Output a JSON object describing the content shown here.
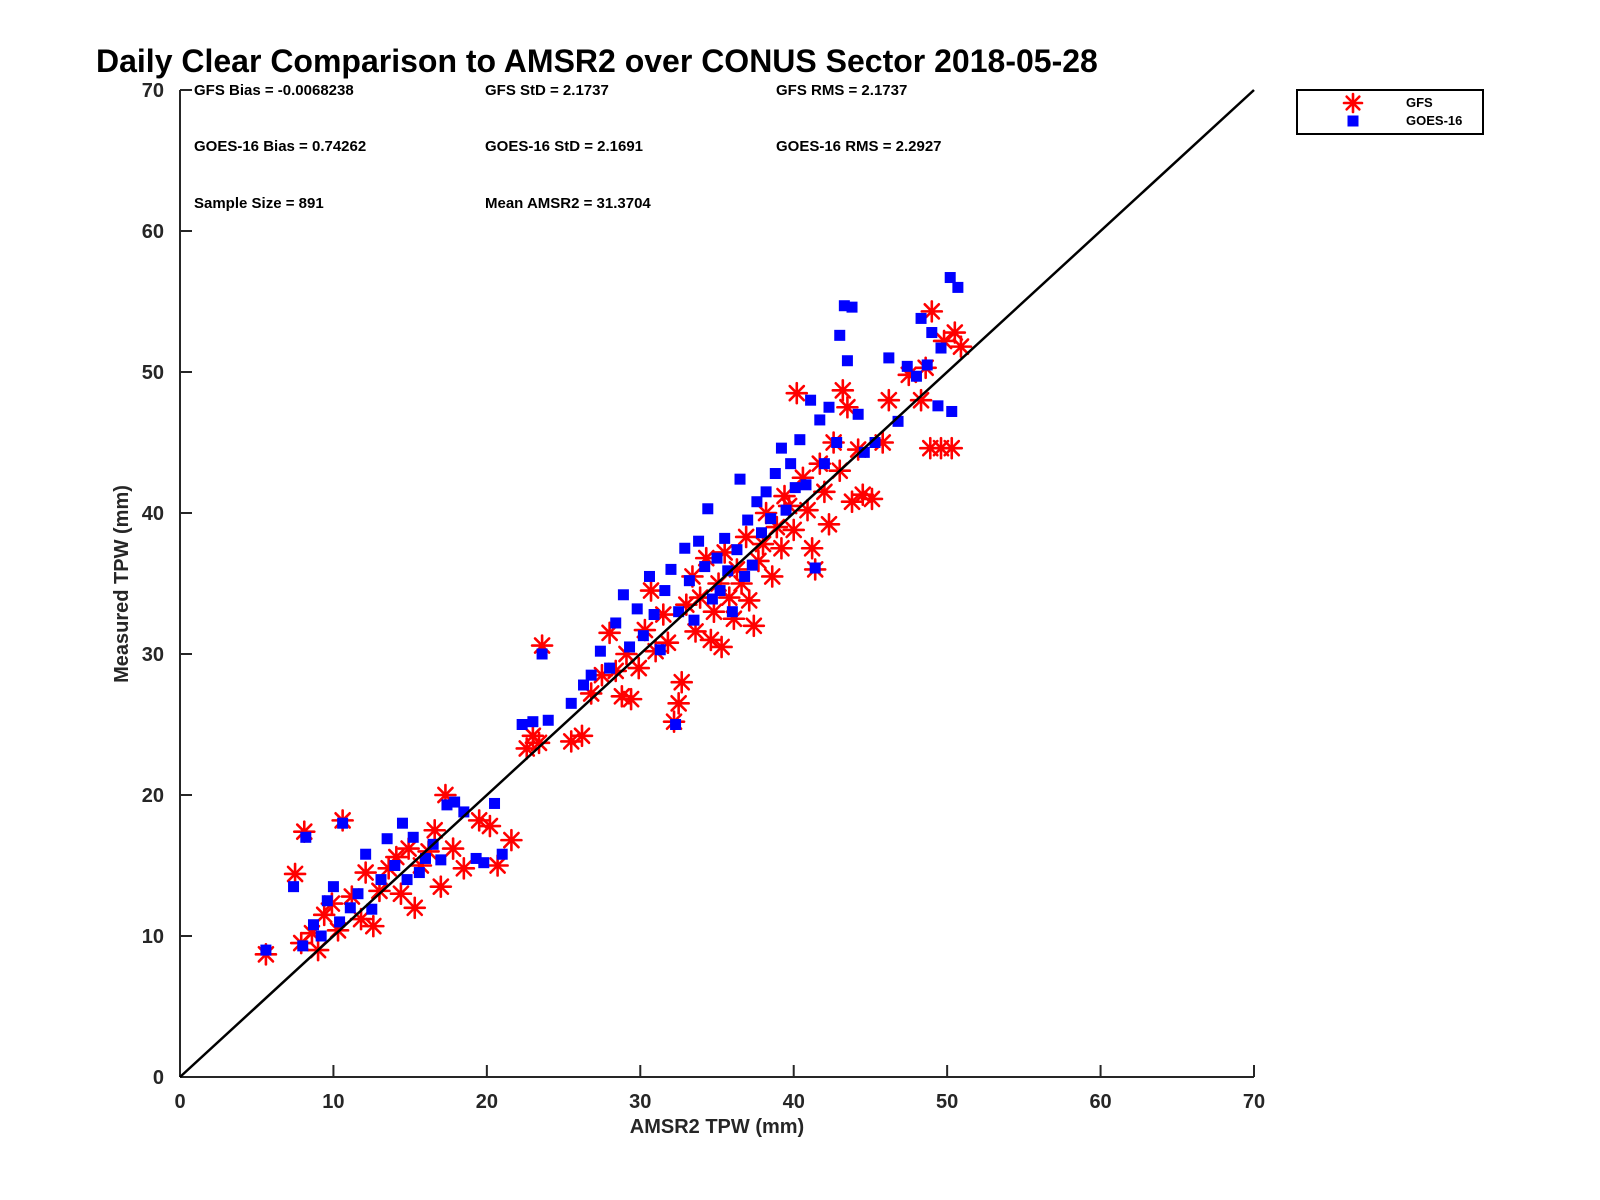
{
  "chart_data": {
    "type": "scatter",
    "title": "Daily Clear Comparison to AMSR2 over CONUS Sector 2018-05-28",
    "xlabel": "AMSR2 TPW (mm)",
    "ylabel": "Measured TPW (mm)",
    "xlim": [
      0,
      70
    ],
    "ylim": [
      0,
      70
    ],
    "xticks": [
      "0",
      "10",
      "20",
      "30",
      "40",
      "50",
      "60",
      "70"
    ],
    "yticks": [
      "0",
      "10",
      "20",
      "30",
      "40",
      "50",
      "60",
      "70"
    ],
    "grid": false,
    "legend_position": "outside-top-right",
    "reference_line": {
      "from": [
        0,
        0
      ],
      "to": [
        70,
        70
      ],
      "color": "#000000"
    },
    "stats": [
      [
        "GFS Bias = -0.0068238",
        "GFS StD = 2.1737",
        "GFS RMS = 2.1737"
      ],
      [
        "GOES-16 Bias = 0.74262",
        "GOES-16 StD = 2.1691",
        "GOES-16 RMS = 2.2927"
      ],
      [
        "Sample Size = 891",
        "Mean AMSR2 = 31.3704",
        ""
      ]
    ],
    "series": [
      {
        "name": "GFS",
        "marker": "asterisk",
        "color": "#ff0000",
        "points": [
          [
            5.6,
            8.7
          ],
          [
            7.5,
            14.4
          ],
          [
            7.9,
            9.5
          ],
          [
            8.1,
            17.4
          ],
          [
            8.6,
            10.2
          ],
          [
            9.0,
            9.0
          ],
          [
            9.4,
            11.5
          ],
          [
            9.9,
            12.3
          ],
          [
            10.3,
            10.4
          ],
          [
            10.6,
            18.2
          ],
          [
            11.2,
            12.8
          ],
          [
            11.8,
            11.2
          ],
          [
            12.1,
            14.5
          ],
          [
            12.6,
            10.7
          ],
          [
            13.0,
            13.2
          ],
          [
            13.6,
            14.8
          ],
          [
            14.1,
            15.6
          ],
          [
            14.4,
            13.0
          ],
          [
            14.9,
            16.2
          ],
          [
            15.3,
            12.0
          ],
          [
            15.7,
            15.0
          ],
          [
            16.2,
            16.0
          ],
          [
            16.6,
            17.5
          ],
          [
            17.0,
            13.5
          ],
          [
            17.3,
            20.0
          ],
          [
            17.8,
            16.2
          ],
          [
            18.5,
            14.8
          ],
          [
            19.5,
            18.2
          ],
          [
            20.2,
            17.8
          ],
          [
            20.7,
            15.0
          ],
          [
            21.6,
            16.8
          ],
          [
            22.6,
            23.3
          ],
          [
            23.0,
            24.2
          ],
          [
            23.4,
            23.7
          ],
          [
            23.6,
            30.6
          ],
          [
            25.5,
            23.8
          ],
          [
            26.2,
            24.2
          ],
          [
            26.8,
            27.2
          ],
          [
            27.5,
            28.5
          ],
          [
            28.0,
            31.5
          ],
          [
            28.4,
            28.8
          ],
          [
            28.8,
            27.0
          ],
          [
            29.1,
            30.0
          ],
          [
            29.4,
            26.8
          ],
          [
            29.9,
            29.0
          ],
          [
            30.3,
            31.7
          ],
          [
            30.7,
            34.5
          ],
          [
            31.0,
            30.2
          ],
          [
            31.5,
            32.8
          ],
          [
            31.8,
            30.8
          ],
          [
            32.2,
            25.2
          ],
          [
            32.5,
            26.5
          ],
          [
            32.7,
            28.0
          ],
          [
            33.0,
            33.5
          ],
          [
            33.4,
            35.5
          ],
          [
            33.6,
            31.6
          ],
          [
            33.9,
            34.0
          ],
          [
            34.3,
            36.8
          ],
          [
            34.6,
            31.0
          ],
          [
            34.8,
            33.0
          ],
          [
            35.1,
            35.0
          ],
          [
            35.3,
            30.5
          ],
          [
            35.5,
            37.2
          ],
          [
            35.8,
            34.0
          ],
          [
            36.1,
            32.5
          ],
          [
            36.3,
            36.0
          ],
          [
            36.6,
            35.0
          ],
          [
            36.9,
            38.3
          ],
          [
            37.1,
            33.8
          ],
          [
            37.4,
            32.0
          ],
          [
            37.7,
            36.6
          ],
          [
            38.0,
            37.8
          ],
          [
            38.2,
            40.0
          ],
          [
            38.6,
            35.5
          ],
          [
            38.9,
            39.0
          ],
          [
            39.2,
            37.5
          ],
          [
            39.4,
            41.2
          ],
          [
            39.7,
            40.5
          ],
          [
            40.0,
            38.8
          ],
          [
            40.2,
            48.5
          ],
          [
            40.6,
            42.5
          ],
          [
            40.9,
            40.2
          ],
          [
            41.2,
            37.5
          ],
          [
            41.4,
            36.0
          ],
          [
            41.7,
            43.5
          ],
          [
            42.0,
            41.5
          ],
          [
            42.3,
            39.2
          ],
          [
            42.6,
            45.0
          ],
          [
            43.0,
            43.0
          ],
          [
            43.2,
            48.7
          ],
          [
            43.5,
            47.5
          ],
          [
            43.8,
            40.8
          ],
          [
            44.2,
            44.5
          ],
          [
            44.5,
            41.3
          ],
          [
            45.1,
            41.0
          ],
          [
            45.8,
            45.0
          ],
          [
            46.2,
            48.0
          ],
          [
            47.5,
            49.8
          ],
          [
            48.3,
            48.0
          ],
          [
            48.6,
            50.3
          ],
          [
            49.0,
            54.3
          ],
          [
            48.9,
            44.6
          ],
          [
            49.6,
            44.6
          ],
          [
            50.3,
            44.6
          ],
          [
            49.8,
            52.2
          ],
          [
            50.5,
            52.8
          ],
          [
            50.9,
            51.8
          ]
        ]
      },
      {
        "name": "GOES-16",
        "marker": "square",
        "color": "#0000ff",
        "points": [
          [
            5.6,
            9.0
          ],
          [
            7.4,
            13.5
          ],
          [
            8.0,
            9.3
          ],
          [
            8.2,
            17.0
          ],
          [
            8.7,
            10.8
          ],
          [
            9.2,
            10.0
          ],
          [
            9.6,
            12.5
          ],
          [
            10.0,
            13.5
          ],
          [
            10.4,
            11.0
          ],
          [
            10.6,
            18.0
          ],
          [
            11.1,
            12.0
          ],
          [
            11.6,
            13.0
          ],
          [
            12.1,
            15.8
          ],
          [
            12.5,
            11.9
          ],
          [
            13.1,
            14.0
          ],
          [
            13.5,
            16.9
          ],
          [
            14.0,
            15.0
          ],
          [
            14.5,
            18.0
          ],
          [
            14.8,
            14.0
          ],
          [
            15.2,
            17.0
          ],
          [
            15.6,
            14.5
          ],
          [
            16.0,
            15.5
          ],
          [
            16.5,
            16.5
          ],
          [
            17.0,
            15.4
          ],
          [
            17.4,
            19.3
          ],
          [
            17.9,
            19.5
          ],
          [
            18.5,
            18.8
          ],
          [
            19.3,
            15.5
          ],
          [
            19.8,
            15.2
          ],
          [
            20.5,
            19.4
          ],
          [
            21.0,
            15.8
          ],
          [
            22.3,
            25.0
          ],
          [
            23.0,
            25.2
          ],
          [
            23.6,
            30.0
          ],
          [
            24.0,
            25.3
          ],
          [
            25.5,
            26.5
          ],
          [
            26.3,
            27.8
          ],
          [
            26.8,
            28.5
          ],
          [
            27.4,
            30.2
          ],
          [
            28.0,
            29.0
          ],
          [
            28.4,
            32.2
          ],
          [
            28.9,
            34.2
          ],
          [
            29.3,
            30.5
          ],
          [
            29.8,
            33.2
          ],
          [
            30.2,
            31.3
          ],
          [
            30.6,
            35.5
          ],
          [
            30.9,
            32.8
          ],
          [
            31.3,
            30.3
          ],
          [
            31.6,
            34.5
          ],
          [
            32.0,
            36.0
          ],
          [
            32.3,
            25.0
          ],
          [
            32.5,
            33.0
          ],
          [
            32.9,
            37.5
          ],
          [
            33.2,
            35.2
          ],
          [
            33.5,
            32.4
          ],
          [
            33.8,
            38.0
          ],
          [
            34.2,
            36.2
          ],
          [
            34.4,
            40.3
          ],
          [
            34.7,
            33.9
          ],
          [
            35.0,
            36.8
          ],
          [
            35.2,
            34.5
          ],
          [
            35.5,
            38.2
          ],
          [
            35.7,
            35.9
          ],
          [
            36.0,
            33.0
          ],
          [
            36.3,
            37.4
          ],
          [
            36.5,
            42.4
          ],
          [
            36.8,
            35.5
          ],
          [
            37.0,
            39.5
          ],
          [
            37.3,
            36.3
          ],
          [
            37.6,
            40.8
          ],
          [
            37.9,
            38.6
          ],
          [
            38.2,
            41.5
          ],
          [
            38.5,
            39.6
          ],
          [
            38.8,
            42.8
          ],
          [
            39.2,
            44.6
          ],
          [
            39.5,
            40.2
          ],
          [
            39.8,
            43.5
          ],
          [
            40.1,
            41.8
          ],
          [
            40.4,
            45.2
          ],
          [
            40.8,
            42.0
          ],
          [
            41.1,
            48.0
          ],
          [
            41.4,
            36.1
          ],
          [
            41.7,
            46.6
          ],
          [
            42.0,
            43.5
          ],
          [
            42.3,
            47.5
          ],
          [
            42.8,
            45.0
          ],
          [
            43.0,
            52.6
          ],
          [
            43.3,
            54.7
          ],
          [
            43.5,
            50.8
          ],
          [
            43.8,
            54.6
          ],
          [
            44.2,
            47.0
          ],
          [
            44.6,
            44.3
          ],
          [
            45.3,
            45.0
          ],
          [
            46.2,
            51.0
          ],
          [
            46.8,
            46.5
          ],
          [
            47.4,
            50.4
          ],
          [
            48.0,
            49.7
          ],
          [
            48.3,
            53.8
          ],
          [
            48.7,
            50.5
          ],
          [
            49.0,
            52.8
          ],
          [
            49.4,
            47.6
          ],
          [
            49.6,
            51.7
          ],
          [
            50.3,
            47.2
          ],
          [
            50.2,
            56.7
          ],
          [
            50.7,
            56.0
          ]
        ]
      }
    ]
  }
}
